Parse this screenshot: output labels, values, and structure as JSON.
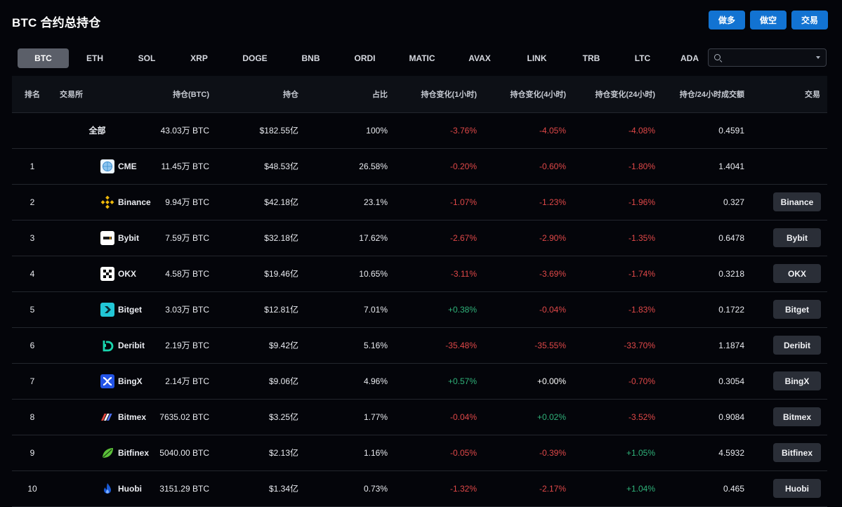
{
  "page": {
    "title": "BTC 合约总持仓"
  },
  "actions": {
    "long": "做多",
    "short": "做空",
    "trade": "交易"
  },
  "tabs": [
    "BTC",
    "ETH",
    "SOL",
    "XRP",
    "DOGE",
    "BNB",
    "ORDI",
    "MATIC",
    "AVAX",
    "LINK",
    "TRB",
    "LTC",
    "ADA"
  ],
  "search": {
    "value": "",
    "placeholder": ""
  },
  "table": {
    "headers": {
      "rank": "排名",
      "exchange": "交易所",
      "oi_btc": "持仓(BTC)",
      "oi_usd": "持仓",
      "share": "占比",
      "chg1h": "持仓变化(1小时)",
      "chg4h": "持仓变化(4小时)",
      "chg24h": "持仓变化(24小时)",
      "ratio": "持仓/24小时成交额",
      "trade": "交易"
    },
    "total": {
      "name": "全部",
      "oi_btc": "43.03万 BTC",
      "oi_usd": "$182.55亿",
      "share": "100%",
      "chg1h": "-3.76%",
      "chg4h": "-4.05%",
      "chg24h": "-4.08%",
      "ratio": "0.4591"
    },
    "rows": [
      {
        "rank": "1",
        "name": "CME",
        "icon": "cme-logo-icon",
        "oi_btc": "11.45万 BTC",
        "oi_usd": "$48.53亿",
        "share": "26.58%",
        "chg1h": "-0.20%",
        "chg4h": "-0.60%",
        "chg24h": "-1.80%",
        "ratio": "1.4041",
        "button": ""
      },
      {
        "rank": "2",
        "name": "Binance",
        "icon": "binance-logo-icon",
        "oi_btc": "9.94万 BTC",
        "oi_usd": "$42.18亿",
        "share": "23.1%",
        "chg1h": "-1.07%",
        "chg4h": "-1.23%",
        "chg24h": "-1.96%",
        "ratio": "0.327",
        "button": "Binance"
      },
      {
        "rank": "3",
        "name": "Bybit",
        "icon": "bybit-logo-icon",
        "oi_btc": "7.59万 BTC",
        "oi_usd": "$32.18亿",
        "share": "17.62%",
        "chg1h": "-2.67%",
        "chg4h": "-2.90%",
        "chg24h": "-1.35%",
        "ratio": "0.6478",
        "button": "Bybit"
      },
      {
        "rank": "4",
        "name": "OKX",
        "icon": "okx-logo-icon",
        "oi_btc": "4.58万 BTC",
        "oi_usd": "$19.46亿",
        "share": "10.65%",
        "chg1h": "-3.11%",
        "chg4h": "-3.69%",
        "chg24h": "-1.74%",
        "ratio": "0.3218",
        "button": "OKX"
      },
      {
        "rank": "5",
        "name": "Bitget",
        "icon": "bitget-logo-icon",
        "oi_btc": "3.03万 BTC",
        "oi_usd": "$12.81亿",
        "share": "7.01%",
        "chg1h": "+0.38%",
        "chg4h": "-0.04%",
        "chg24h": "-1.83%",
        "ratio": "0.1722",
        "button": "Bitget"
      },
      {
        "rank": "6",
        "name": "Deribit",
        "icon": "deribit-logo-icon",
        "oi_btc": "2.19万 BTC",
        "oi_usd": "$9.42亿",
        "share": "5.16%",
        "chg1h": "-35.48%",
        "chg4h": "-35.55%",
        "chg24h": "-33.70%",
        "ratio": "1.1874",
        "button": "Deribit"
      },
      {
        "rank": "7",
        "name": "BingX",
        "icon": "bingx-logo-icon",
        "oi_btc": "2.14万 BTC",
        "oi_usd": "$9.06亿",
        "share": "4.96%",
        "chg1h": "+0.57%",
        "chg4h": "+0.00%",
        "chg24h": "-0.70%",
        "ratio": "0.3054",
        "button": "BingX"
      },
      {
        "rank": "8",
        "name": "Bitmex",
        "icon": "bitmex-logo-icon",
        "oi_btc": "7635.02 BTC",
        "oi_usd": "$3.25亿",
        "share": "1.77%",
        "chg1h": "-0.04%",
        "chg4h": "+0.02%",
        "chg24h": "-3.52%",
        "ratio": "0.9084",
        "button": "Bitmex"
      },
      {
        "rank": "9",
        "name": "Bitfinex",
        "icon": "bitfinex-logo-icon",
        "oi_btc": "5040.00 BTC",
        "oi_usd": "$2.13亿",
        "share": "1.16%",
        "chg1h": "-0.05%",
        "chg4h": "-0.39%",
        "chg24h": "+1.05%",
        "ratio": "4.5932",
        "button": "Bitfinex"
      },
      {
        "rank": "10",
        "name": "Huobi",
        "icon": "huobi-logo-icon",
        "oi_btc": "3151.29 BTC",
        "oi_usd": "$1.34亿",
        "share": "0.73%",
        "chg1h": "-1.32%",
        "chg4h": "-2.17%",
        "chg24h": "+1.04%",
        "ratio": "0.465",
        "button": "Huobi"
      }
    ]
  },
  "colors": {
    "accent": "#1273d2",
    "negative": "#e04848",
    "positive": "#2fb27a",
    "neutral": "#ffffff"
  }
}
